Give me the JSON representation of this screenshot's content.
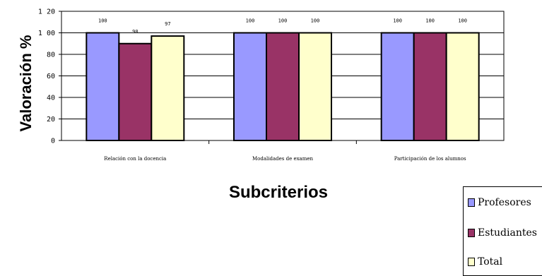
{
  "chart_data": {
    "type": "bar",
    "categories": [
      "Relación con la docencia",
      "Modalidades de examen",
      "Participación de los alumnos"
    ],
    "series": [
      {
        "name": "Profesores",
        "values": [
          100,
          100,
          100
        ],
        "color": "#9999ff"
      },
      {
        "name": "Estudiantes",
        "values": [
          90,
          100,
          100
        ],
        "color": "#993366"
      },
      {
        "name": "Total",
        "values": [
          97,
          100,
          100
        ],
        "color": "#ffffcc"
      }
    ],
    "data_labels": [
      [
        "100",
        "90",
        "97"
      ],
      [
        "100",
        "100",
        "100"
      ],
      [
        "100",
        "100",
        "100"
      ]
    ],
    "yticks": [
      "0",
      "20",
      "40",
      "60",
      "80",
      "1 00",
      "1 20"
    ],
    "ylim": [
      0,
      120
    ],
    "ylabel": "Valoración %",
    "xlabel": "Subcriterios",
    "grid": true,
    "legend_position": "bottom-right"
  }
}
